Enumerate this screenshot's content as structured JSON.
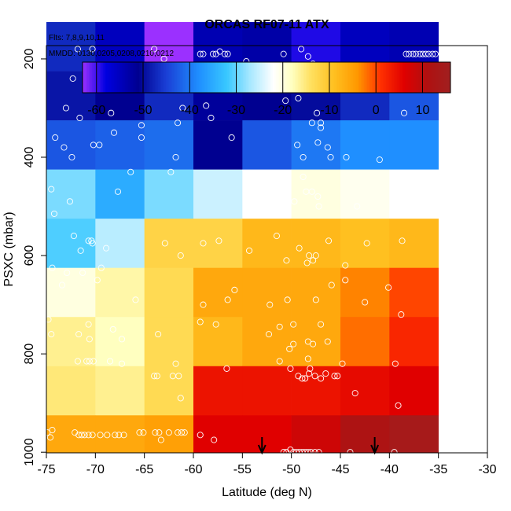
{
  "chart_data": {
    "type": "heatmap",
    "title": "ORCAS RF07-11 ATX",
    "subtitle_flights": "Flts: 7,8,9,10,11",
    "subtitle_dates": "MMDD: 0130,0205,0208,0210,0212",
    "xlabel": "Latitude (deg N)",
    "ylabel": "PSXC (mbar)",
    "xlim": [
      -75,
      -30
    ],
    "ylim": [
      1000,
      100
    ],
    "x_ticks": [
      -75,
      -70,
      -65,
      -60,
      -55,
      -50,
      -45,
      -40,
      -35,
      -30
    ],
    "y_ticks": [
      200,
      400,
      600,
      800,
      1000
    ],
    "lat_edges": [
      -75,
      -70,
      -65,
      -60,
      -55,
      -50,
      -45,
      -40,
      -35
    ],
    "pres_edges": [
      125,
      225,
      325,
      425,
      525,
      625,
      725,
      825,
      925,
      1000
    ],
    "cells": [
      [
        -47,
        -55,
        -63,
        -54,
        -53,
        -59,
        -55,
        -54
      ],
      [
        -49,
        -51,
        -47,
        -52,
        -51,
        -50,
        -47,
        -43
      ],
      [
        -43,
        -42,
        -41,
        -51,
        -43,
        -40,
        -38,
        -38
      ],
      [
        -29,
        -35,
        -29,
        -25,
        -22,
        -20,
        -21,
        -22
      ],
      [
        -31,
        -26,
        -12,
        -12,
        -8,
        -8,
        -9,
        -8
      ],
      [
        -20,
        -17,
        -13,
        -6,
        -6,
        -6,
        -3,
        0
      ],
      [
        -16,
        -18,
        -13,
        -8,
        -6,
        -6,
        -2,
        2
      ],
      [
        -15,
        -16,
        -13,
        4,
        4,
        4,
        5,
        6
      ],
      [
        -6,
        -6,
        -5,
        6,
        6,
        8,
        12,
        14
      ]
    ],
    "colorbar": {
      "min": -63,
      "max": 16,
      "ticks": [
        -60,
        -50,
        -40,
        -30,
        -20,
        -10,
        0,
        10
      ],
      "tick_labels": [
        "-60",
        "-50",
        "-40",
        "-30",
        "-20",
        "-10",
        "0",
        "10"
      ],
      "stops": [
        {
          "v": -63,
          "c": "#9b30ff"
        },
        {
          "v": -58,
          "c": "#0000e0"
        },
        {
          "v": -51,
          "c": "#000090"
        },
        {
          "v": -45,
          "c": "#1a3fd6"
        },
        {
          "v": -38,
          "c": "#1f8fff"
        },
        {
          "v": -32,
          "c": "#38c8ff"
        },
        {
          "v": -27,
          "c": "#a8e8ff"
        },
        {
          "v": -22,
          "c": "#ffffff"
        },
        {
          "v": -18,
          "c": "#ffffc0"
        },
        {
          "v": -14,
          "c": "#ffe060"
        },
        {
          "v": -9,
          "c": "#ffc020"
        },
        {
          "v": -4,
          "c": "#ff9800"
        },
        {
          "v": 1,
          "c": "#ff3000"
        },
        {
          "v": 6,
          "c": "#e00000"
        },
        {
          "v": 11,
          "c": "#b01010"
        },
        {
          "v": 16,
          "c": "#a02020"
        }
      ]
    },
    "arrows_lat": [
      -53,
      -41.5
    ],
    "samples": [
      [
        -71.8,
        180
      ],
      [
        -70.3,
        180
      ],
      [
        -64,
        180
      ],
      [
        -63,
        200
      ],
      [
        -62.6,
        215
      ],
      [
        -59.3,
        190
      ],
      [
        -59,
        190
      ],
      [
        -58,
        190
      ],
      [
        -57.7,
        190
      ],
      [
        -57.3,
        185
      ],
      [
        -56.8,
        190
      ],
      [
        -56.5,
        190
      ],
      [
        -54.6,
        205
      ],
      [
        -50.8,
        190
      ],
      [
        -49,
        180
      ],
      [
        -48.3,
        195
      ],
      [
        -47.8,
        210
      ],
      [
        -38.3,
        190
      ],
      [
        -38,
        190
      ],
      [
        -37.6,
        190
      ],
      [
        -37.3,
        190
      ],
      [
        -36.9,
        190
      ],
      [
        -36.6,
        190
      ],
      [
        -36.3,
        190
      ],
      [
        -36,
        190
      ],
      [
        -35.6,
        190
      ],
      [
        -35.3,
        190
      ],
      [
        -72.3,
        240
      ],
      [
        -69.8,
        250
      ],
      [
        -69.3,
        250
      ],
      [
        -68.6,
        245
      ],
      [
        -68.4,
        255
      ],
      [
        -67.9,
        220
      ],
      [
        -61.9,
        220
      ],
      [
        -59,
        230
      ],
      [
        -58.7,
        255
      ],
      [
        -51.1,
        240
      ],
      [
        -49.6,
        260
      ],
      [
        -47.2,
        255
      ],
      [
        -37.3,
        240
      ],
      [
        -73,
        300
      ],
      [
        -71.6,
        320
      ],
      [
        -68.4,
        310
      ],
      [
        -65.3,
        335
      ],
      [
        -61.1,
        300
      ],
      [
        -61.6,
        330
      ],
      [
        -58.7,
        295
      ],
      [
        -58.2,
        320
      ],
      [
        -53.5,
        260
      ],
      [
        -50.6,
        285
      ],
      [
        -49.3,
        280
      ],
      [
        -47.4,
        310
      ],
      [
        -47,
        330
      ],
      [
        -47.9,
        330
      ],
      [
        -38.5,
        310
      ],
      [
        -74.1,
        360
      ],
      [
        -73.2,
        380
      ],
      [
        -72.4,
        400
      ],
      [
        -70.2,
        375
      ],
      [
        -69.6,
        375
      ],
      [
        -68.1,
        350
      ],
      [
        -65.3,
        360
      ],
      [
        -61.8,
        400
      ],
      [
        -56.1,
        360
      ],
      [
        -49.4,
        375
      ],
      [
        -48.8,
        400
      ],
      [
        -47.3,
        370
      ],
      [
        -47,
        340
      ],
      [
        -46.3,
        380
      ],
      [
        -46,
        400
      ],
      [
        -44.4,
        400
      ],
      [
        -41,
        405
      ],
      [
        -74.5,
        465
      ],
      [
        -72.6,
        490
      ],
      [
        -67.7,
        470
      ],
      [
        -66.4,
        430
      ],
      [
        -62.3,
        430
      ],
      [
        -50.4,
        460
      ],
      [
        -49.7,
        490
      ],
      [
        -48.5,
        470
      ],
      [
        -48.8,
        440
      ],
      [
        -47.9,
        470
      ],
      [
        -47.3,
        480
      ],
      [
        -47.2,
        500
      ],
      [
        -43.3,
        500
      ],
      [
        -38.5,
        435
      ],
      [
        -75.4,
        510
      ],
      [
        -74.2,
        515
      ],
      [
        -72.2,
        560
      ],
      [
        -70.7,
        570
      ],
      [
        -70.4,
        570
      ],
      [
        -71.5,
        590
      ],
      [
        -70.3,
        575
      ],
      [
        -68.9,
        585
      ],
      [
        -62.9,
        575
      ],
      [
        -61.3,
        600
      ],
      [
        -59,
        575
      ],
      [
        -57.4,
        570
      ],
      [
        -54.3,
        590
      ],
      [
        -51.5,
        560
      ],
      [
        -50.5,
        610
      ],
      [
        -49.2,
        585
      ],
      [
        -48.4,
        615
      ],
      [
        -47.8,
        610
      ],
      [
        -48.2,
        600
      ],
      [
        -47.5,
        600
      ],
      [
        -46.2,
        570
      ],
      [
        -44.5,
        620
      ],
      [
        -42.3,
        575
      ],
      [
        -38.7,
        570
      ],
      [
        -74.4,
        625
      ],
      [
        -73.4,
        660
      ],
      [
        -72.9,
        635
      ],
      [
        -71.3,
        635
      ],
      [
        -69.8,
        650
      ],
      [
        -69.4,
        625
      ],
      [
        -65.9,
        690
      ],
      [
        -59,
        700
      ],
      [
        -56.5,
        690
      ],
      [
        -55.8,
        670
      ],
      [
        -52.2,
        700
      ],
      [
        -50.4,
        690
      ],
      [
        -47.5,
        690
      ],
      [
        -45.9,
        660
      ],
      [
        -44.5,
        650
      ],
      [
        -42.5,
        695
      ],
      [
        -40.1,
        665
      ],
      [
        -38.8,
        720
      ],
      [
        -74.8,
        730
      ],
      [
        -74.5,
        760
      ],
      [
        -71.7,
        760
      ],
      [
        -70.7,
        740
      ],
      [
        -70.6,
        770
      ],
      [
        -68.2,
        750
      ],
      [
        -67.3,
        770
      ],
      [
        -63.6,
        760
      ],
      [
        -59.3,
        735
      ],
      [
        -57.7,
        740
      ],
      [
        -52.3,
        760
      ],
      [
        -51.2,
        745
      ],
      [
        -49.8,
        740
      ],
      [
        -47,
        740
      ],
      [
        -48.3,
        775
      ],
      [
        -47.8,
        780
      ],
      [
        -49.8,
        780
      ],
      [
        -50.2,
        790
      ],
      [
        -46.3,
        775
      ],
      [
        -71.8,
        815
      ],
      [
        -70.9,
        815
      ],
      [
        -70.6,
        815
      ],
      [
        -70.2,
        815
      ],
      [
        -68.5,
        815
      ],
      [
        -67.3,
        820
      ],
      [
        -64,
        845
      ],
      [
        -63.7,
        845
      ],
      [
        -61.8,
        820
      ],
      [
        -61.5,
        845
      ],
      [
        -62.1,
        845
      ],
      [
        -61.3,
        890
      ],
      [
        -56.6,
        830
      ],
      [
        -51.2,
        815
      ],
      [
        -50.1,
        830
      ],
      [
        -48.3,
        810
      ],
      [
        -48.1,
        830
      ],
      [
        -49.3,
        845
      ],
      [
        -48.9,
        850
      ],
      [
        -48.6,
        850
      ],
      [
        -48.2,
        840
      ],
      [
        -47.6,
        845
      ],
      [
        -47,
        850
      ],
      [
        -46.5,
        840
      ],
      [
        -45.6,
        845
      ],
      [
        -45.3,
        845
      ],
      [
        -44.8,
        820
      ],
      [
        -43.5,
        880
      ],
      [
        -39.4,
        820
      ],
      [
        -39.1,
        905
      ],
      [
        -74.9,
        960
      ],
      [
        -74.6,
        970
      ],
      [
        -74.4,
        955
      ],
      [
        -72.1,
        960
      ],
      [
        -71.7,
        965
      ],
      [
        -71.4,
        965
      ],
      [
        -71.1,
        965
      ],
      [
        -70.7,
        965
      ],
      [
        -70.3,
        965
      ],
      [
        -69.5,
        965
      ],
      [
        -68.8,
        965
      ],
      [
        -68,
        965
      ],
      [
        -67.6,
        965
      ],
      [
        -67.1,
        965
      ],
      [
        -65.5,
        960
      ],
      [
        -65.1,
        960
      ],
      [
        -63.9,
        960
      ],
      [
        -63.5,
        960
      ],
      [
        -63.3,
        975
      ],
      [
        -62.5,
        960
      ],
      [
        -61.6,
        960
      ],
      [
        -61.2,
        960
      ],
      [
        -60.9,
        960
      ],
      [
        -59.3,
        965
      ],
      [
        -57.9,
        975
      ],
      [
        -50.8,
        1000
      ],
      [
        -50.5,
        1000
      ],
      [
        -50.1,
        995
      ],
      [
        -49.8,
        1000
      ],
      [
        -49.5,
        1000
      ],
      [
        -49.2,
        1000
      ],
      [
        -48.9,
        1000
      ],
      [
        -48.6,
        1000
      ],
      [
        -48.3,
        1000
      ],
      [
        -48,
        1000
      ],
      [
        -47.6,
        1000
      ],
      [
        -47.2,
        1000
      ],
      [
        -44,
        1000
      ],
      [
        -39.5,
        1000
      ]
    ]
  }
}
